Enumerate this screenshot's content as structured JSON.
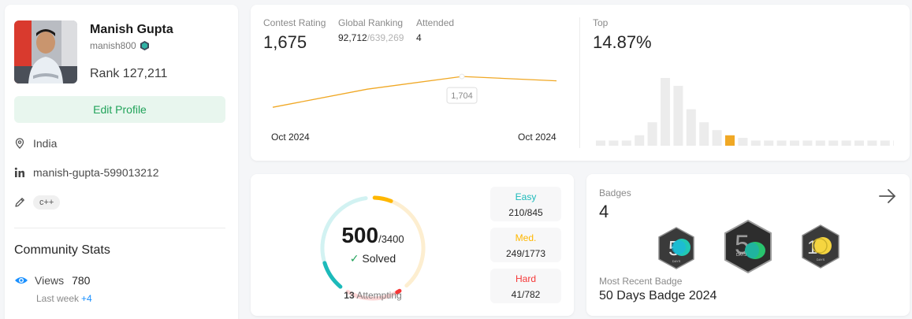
{
  "profile": {
    "name": "Manish Gupta",
    "username": "manish800",
    "rank": "Rank 127,211",
    "edit_label": "Edit Profile",
    "location": "India",
    "linkedin": "manish-gupta-599013212",
    "skill_tag": "c++",
    "community_title": "Community Stats",
    "views_label": "Views",
    "views_value": "780",
    "last_week_label": "Last week",
    "last_week_delta": "+4"
  },
  "contest": {
    "rating_label": "Contest Rating",
    "rating_value": "1,675",
    "global_label": "Global Ranking",
    "global_value": "92,712",
    "global_total": "/639,269",
    "attended_label": "Attended",
    "attended_value": "4",
    "top_label": "Top",
    "top_value": "14.87%",
    "x_start": "Oct 2024",
    "x_end": "Oct 2024",
    "tooltip": "1,704",
    "accent": "#f0a825"
  },
  "chart_data": [
    {
      "type": "line",
      "x": [
        "Oct 2024",
        "Oct 2024",
        "Oct 2024",
        "Oct 2024"
      ],
      "values": [
        1500,
        1620,
        1704,
        1675
      ]
    },
    {
      "type": "bar",
      "values": [
        2,
        2,
        2,
        4,
        9,
        26,
        23,
        14,
        9,
        6,
        4,
        3,
        2,
        2,
        2,
        2,
        2,
        2,
        2,
        2,
        2,
        2,
        2,
        2
      ],
      "highlight_index": 10
    }
  ],
  "problems": {
    "solved": "500",
    "total": "/3400",
    "solved_label": "Solved",
    "attempting_count": "13",
    "attempting_label": "Attempting",
    "easy_label": "Easy",
    "easy_value": "210/845",
    "medium_label": "Med.",
    "medium_value": "249/1773",
    "hard_label": "Hard",
    "hard_value": "41/782",
    "colors": {
      "easy": "#1cbaba",
      "medium": "#ffb700",
      "hard": "#f63737"
    }
  },
  "badges": {
    "title": "Badges",
    "count": "4",
    "recent_label": "Most Recent Badge",
    "recent_name": "50 Days Badge 2024",
    "badge1_text": "DAYS",
    "badge2_text": "DAYS",
    "badge3_text": "DAYS"
  }
}
